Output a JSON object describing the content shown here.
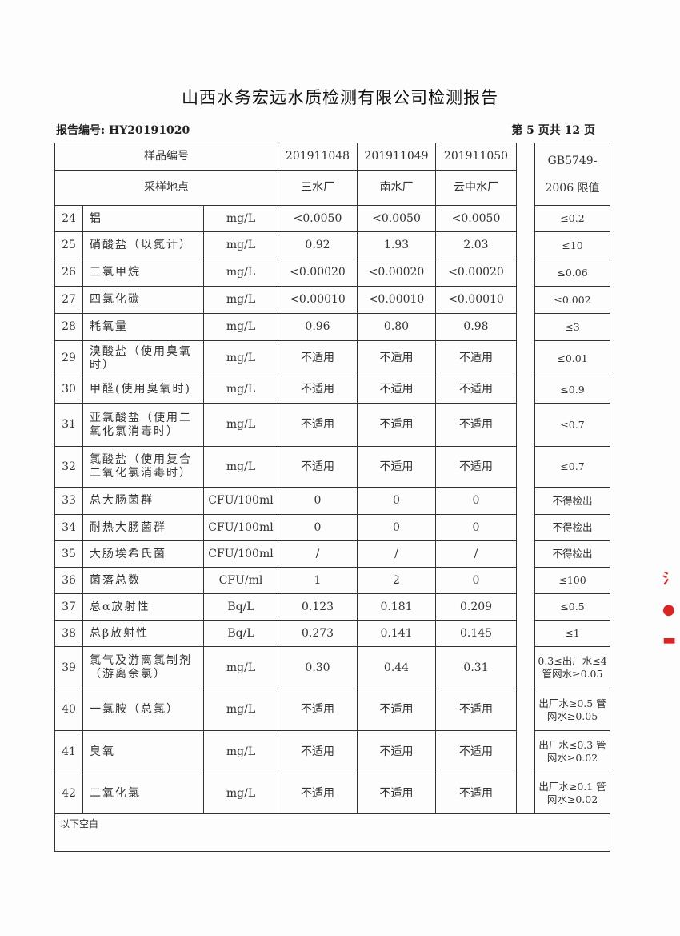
{
  "title": "山西水务宏远水质检测有限公司检测报告",
  "report_no": "报告编号: HY20191020",
  "page_info": "第 5 页共 12 页",
  "header": {
    "sample_no_label": "样品编号",
    "location_label": "采样地点",
    "samples": [
      "201911048",
      "201911049",
      "201911050"
    ],
    "locations": [
      "三水厂",
      "南水厂",
      "云中水厂"
    ],
    "limit_label": "GB5749-2006 限值"
  },
  "rows": [
    {
      "no": "24",
      "name": "铝",
      "unit": "mg/L",
      "v": [
        "<0.0050",
        "<0.0050",
        "<0.0050"
      ],
      "limit": "≤0.2"
    },
    {
      "no": "25",
      "name": "硝酸盐（以氮计）",
      "unit": "mg/L",
      "v": [
        "0.92",
        "1.93",
        "2.03"
      ],
      "limit": "≤10"
    },
    {
      "no": "26",
      "name": "三氯甲烷",
      "unit": "mg/L",
      "v": [
        "<0.00020",
        "<0.00020",
        "<0.00020"
      ],
      "limit": "≤0.06"
    },
    {
      "no": "27",
      "name": "四氯化碳",
      "unit": "mg/L",
      "v": [
        "<0.00010",
        "<0.00010",
        "<0.00010"
      ],
      "limit": "≤0.002"
    },
    {
      "no": "28",
      "name": "耗氧量",
      "unit": "mg/L",
      "v": [
        "0.96",
        "0.80",
        "0.98"
      ],
      "limit": "≤3"
    },
    {
      "no": "29",
      "name": "溴酸盐（使用臭氧时）",
      "unit": "mg/L",
      "v": [
        "不适用",
        "不适用",
        "不适用"
      ],
      "limit": "≤0.01"
    },
    {
      "no": "30",
      "name": "甲醛(使用臭氧时)",
      "unit": "mg/L",
      "v": [
        "不适用",
        "不适用",
        "不适用"
      ],
      "limit": "≤0.9"
    },
    {
      "no": "31",
      "name": "亚氯酸盐（使用二氧化氯消毒时）",
      "unit": "mg/L",
      "v": [
        "不适用",
        "不适用",
        "不适用"
      ],
      "limit": "≤0.7"
    },
    {
      "no": "32",
      "name": "氯酸盐（使用复合二氧化氯消毒时）",
      "unit": "mg/L",
      "v": [
        "不适用",
        "不适用",
        "不适用"
      ],
      "limit": "≤0.7"
    },
    {
      "no": "33",
      "name": "总大肠菌群",
      "unit": "CFU/100ml",
      "v": [
        "0",
        "0",
        "0"
      ],
      "limit": "不得检出"
    },
    {
      "no": "34",
      "name": "耐热大肠菌群",
      "unit": "CFU/100ml",
      "v": [
        "0",
        "0",
        "0"
      ],
      "limit": "不得检出"
    },
    {
      "no": "35",
      "name": "大肠埃希氏菌",
      "unit": "CFU/100ml",
      "v": [
        "/",
        "/",
        "/"
      ],
      "limit": "不得检出"
    },
    {
      "no": "36",
      "name": "菌落总数",
      "unit": "CFU/ml",
      "v": [
        "1",
        "2",
        "0"
      ],
      "limit": "≤100"
    },
    {
      "no": "37",
      "name": "总α放射性",
      "unit": "Bq/L",
      "v": [
        "0.123",
        "0.181",
        "0.209"
      ],
      "limit": "≤0.5"
    },
    {
      "no": "38",
      "name": "总β放射性",
      "unit": "Bq/L",
      "v": [
        "0.273",
        "0.141",
        "0.145"
      ],
      "limit": "≤1"
    },
    {
      "no": "39",
      "name": "氯气及游离氯制剂（游离余氯）",
      "unit": "mg/L",
      "v": [
        "0.30",
        "0.44",
        "0.31"
      ],
      "limit": "0.3≤出厂水≤4 管网水≥0.05"
    },
    {
      "no": "40",
      "name": "一氯胺（总氯）",
      "unit": "mg/L",
      "v": [
        "不适用",
        "不适用",
        "不适用"
      ],
      "limit": "出厂水≥0.5 管网水≥0.05"
    },
    {
      "no": "41",
      "name": "臭氧",
      "unit": "mg/L",
      "v": [
        "不适用",
        "不适用",
        "不适用"
      ],
      "limit": "出厂水≤0.3 管网水≥0.02"
    },
    {
      "no": "42",
      "name": "二氧化氯",
      "unit": "mg/L",
      "v": [
        "不适用",
        "不适用",
        "不适用"
      ],
      "limit": "出厂水≥0.1 管网水≥0.02"
    }
  ],
  "footer_note": "以下空白",
  "stamp_color": "#dd2222"
}
